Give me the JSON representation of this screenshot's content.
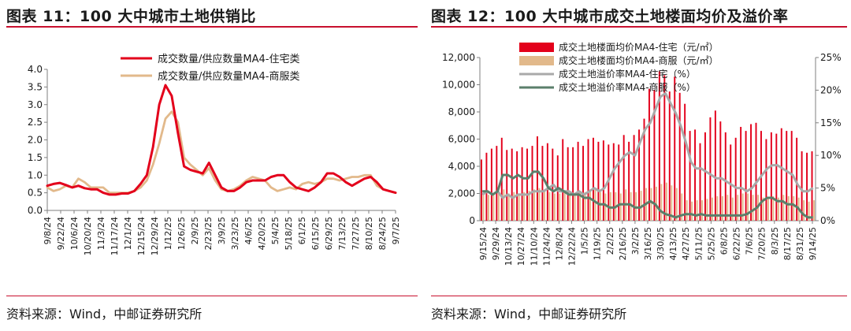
{
  "panels": {
    "left": {
      "title": "图表 11：100 大中城市土地供销比",
      "source": "资料来源：Wind，中邮证券研究所"
    },
    "right": {
      "title": "图表 12：100 大中城市成交土地楼面均价及溢价率",
      "source": "资料来源：Wind，中邮证券研究所"
    }
  },
  "chart_data": [
    {
      "type": "line",
      "title": "",
      "xlabel": "",
      "ylabel": "",
      "ylim": [
        0,
        4.0
      ],
      "yticks": [
        "0.0",
        "0.5",
        "1.0",
        "1.5",
        "2.0",
        "2.5",
        "3.0",
        "3.5",
        "4.0"
      ],
      "x_tick_labels": [
        "9/8/24",
        "9/22/24",
        "10/6/24",
        "10/20/24",
        "11/3/24",
        "11/17/24",
        "12/1/24",
        "12/15/24",
        "12/29/24",
        "1/12/25",
        "1/26/25",
        "2/9/25",
        "2/23/25",
        "3/9/25",
        "3/23/25",
        "4/6/25",
        "4/20/25",
        "5/4/25",
        "5/18/25",
        "6/1/25",
        "6/15/25",
        "6/29/25",
        "7/13/25",
        "7/27/25",
        "8/10/25",
        "8/24/25",
        "9/7/25"
      ],
      "legend_placement": "top",
      "grid": false,
      "colors": {
        "residential": "#e3001b",
        "commercial": "#e2b98b"
      },
      "series": [
        {
          "name": "成交数量/供应数量MA4-住宅类",
          "values": [
            0.7,
            0.75,
            0.78,
            0.72,
            0.65,
            0.7,
            0.63,
            0.6,
            0.6,
            0.5,
            0.45,
            0.45,
            0.48,
            0.48,
            0.55,
            0.75,
            1.0,
            1.8,
            3.0,
            3.55,
            3.25,
            2.2,
            1.25,
            1.15,
            1.1,
            1.05,
            1.35,
            1.0,
            0.65,
            0.55,
            0.55,
            0.65,
            0.8,
            0.85,
            0.85,
            0.85,
            0.95,
            1.0,
            1.0,
            0.8,
            0.65,
            0.6,
            0.55,
            0.65,
            0.8,
            1.05,
            1.05,
            0.95,
            0.8,
            0.7,
            0.8,
            0.9,
            0.95,
            0.8,
            0.6,
            0.55,
            0.5
          ]
        },
        {
          "name": "成交数量/供应数量MA4-商服类",
          "values": [
            0.65,
            0.55,
            0.6,
            0.7,
            0.65,
            0.9,
            0.8,
            0.65,
            0.65,
            0.65,
            0.5,
            0.5,
            0.5,
            0.5,
            0.55,
            0.65,
            0.85,
            1.3,
            1.9,
            2.6,
            2.8,
            2.5,
            1.5,
            1.3,
            1.15,
            1.0,
            1.2,
            0.85,
            0.6,
            0.55,
            0.6,
            0.7,
            0.85,
            0.95,
            0.9,
            0.85,
            0.65,
            0.55,
            0.6,
            0.65,
            0.6,
            0.75,
            0.8,
            0.75,
            0.8,
            0.9,
            0.9,
            0.85,
            0.9,
            0.95,
            0.95,
            1.0,
            1.0,
            0.7,
            0.6,
            0.55,
            0.5
          ]
        }
      ]
    },
    {
      "type": "bar",
      "title": "",
      "xlabel": "",
      "ylabel": "",
      "ylim": [
        0,
        12000
      ],
      "y2lim": [
        0,
        25
      ],
      "yticks": [
        "0",
        "2,000",
        "4,000",
        "6,000",
        "8,000",
        "10,000",
        "12,000"
      ],
      "y2ticks": [
        "0%",
        "5%",
        "10%",
        "15%",
        "20%",
        "25%"
      ],
      "x_tick_labels": [
        "9/15/24",
        "9/29/24",
        "10/13/24",
        "10/27/24",
        "11/10/24",
        "11/24/24",
        "12/8/24",
        "12/22/24",
        "1/5/25",
        "1/19/25",
        "2/2/25",
        "2/16/25",
        "3/2/25",
        "3/16/25",
        "3/30/25",
        "4/13/25",
        "4/27/25",
        "5/11/25",
        "5/25/25",
        "6/8/25",
        "6/22/25",
        "7/6/25",
        "7/20/25",
        "8/3/25",
        "8/17/25",
        "8/31/25",
        "9/14/25"
      ],
      "legend_placement": "top-left",
      "grid": false,
      "colors": {
        "bar_res": "#e3001b",
        "bar_com": "#e2b98b",
        "line_res": "#a9a9a9",
        "line_com": "#5b7f6b"
      },
      "series": [
        {
          "name": "成交土地楼面均价MA4-住宅（元/㎡）",
          "axis": "left",
          "kind": "bar",
          "values": [
            4500,
            5000,
            5300,
            5500,
            6100,
            5200,
            5300,
            5100,
            5400,
            5300,
            5500,
            6200,
            5500,
            5700,
            5300,
            4800,
            6000,
            5400,
            5400,
            5800,
            5500,
            6000,
            6100,
            5800,
            5900,
            5600,
            5700,
            5600,
            6300,
            5800,
            6300,
            6700,
            7500,
            9700,
            9600,
            11000,
            10700,
            9500,
            10600,
            9400,
            8600,
            6600,
            6700,
            5700,
            6500,
            7600,
            8100,
            7300,
            6500,
            5600,
            6100,
            6900,
            6600,
            7100,
            7200,
            6600,
            6000,
            6500,
            6400,
            6800,
            6600,
            6600,
            6100,
            5100,
            5000,
            5100
          ]
        },
        {
          "name": "成交土地楼面均价MA4-商服（元/㎡）",
          "axis": "left",
          "kind": "bar",
          "values": [
            2000,
            1900,
            2000,
            2100,
            2300,
            2000,
            2100,
            2000,
            2100,
            2200,
            2300,
            2400,
            2200,
            2100,
            2000,
            2000,
            2200,
            2000,
            2000,
            2200,
            2100,
            2200,
            2300,
            2100,
            2000,
            2100,
            2100,
            2000,
            2300,
            2100,
            2100,
            2200,
            2400,
            2400,
            2500,
            2700,
            2800,
            2600,
            2400,
            2000,
            1500,
            1400,
            1500,
            1500,
            1600,
            1700,
            1800,
            1800,
            1900,
            1700,
            1900,
            2000,
            2000,
            1900,
            1900,
            1700,
            1600,
            1800,
            1700,
            1900,
            1800,
            1800,
            1700,
            1500,
            1400,
            1500
          ]
        },
        {
          "name": "成交土地溢价率MA4-住宅（%）",
          "axis": "right",
          "kind": "line",
          "values": [
            4.0,
            4.5,
            4.0,
            4.5,
            3.5,
            4.0,
            3.5,
            4.0,
            4.0,
            4.0,
            4.5,
            4.5,
            4.5,
            5.0,
            5.5,
            4.5,
            4.5,
            4.5,
            4.0,
            4.5,
            4.0,
            4.5,
            5.0,
            4.5,
            5.0,
            6.5,
            8.0,
            9.0,
            10.0,
            10.5,
            10.0,
            12.0,
            14.0,
            15.0,
            17.0,
            19.0,
            19.5,
            18.0,
            16.5,
            14.5,
            12.0,
            9.0,
            8.0,
            8.0,
            7.5,
            7.0,
            6.5,
            6.5,
            6.0,
            5.5,
            5.0,
            5.0,
            4.5,
            5.0,
            6.0,
            7.0,
            8.0,
            8.5,
            8.5,
            8.0,
            7.5,
            7.0,
            5.5,
            4.5,
            4.5,
            5.0
          ]
        },
        {
          "name": "成交土地溢价率MA4-商服（%）",
          "axis": "right",
          "kind": "line",
          "values": [
            4.5,
            4.5,
            4.0,
            4.5,
            7.0,
            7.0,
            6.5,
            7.0,
            6.5,
            6.5,
            7.5,
            7.5,
            6.5,
            5.0,
            4.5,
            5.0,
            4.5,
            4.0,
            4.0,
            4.0,
            3.5,
            3.5,
            3.0,
            2.5,
            2.5,
            2.0,
            2.0,
            2.5,
            2.5,
            2.5,
            2.0,
            2.0,
            2.5,
            3.0,
            2.5,
            1.5,
            1.0,
            0.8,
            0.5,
            0.8,
            1.0,
            1.0,
            0.8,
            1.0,
            0.8,
            0.8,
            0.8,
            0.8,
            0.8,
            0.8,
            0.8,
            0.8,
            1.0,
            1.5,
            2.0,
            3.0,
            3.5,
            3.5,
            3.0,
            3.0,
            2.5,
            2.5,
            2.0,
            1.0,
            0.5,
            0.5
          ]
        }
      ]
    }
  ]
}
